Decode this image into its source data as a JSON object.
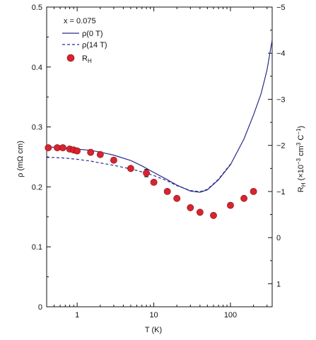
{
  "chart_data": {
    "type": "line",
    "annotation": "x = 0.075",
    "xlabel": "T (K)",
    "ylabel_left": "ρ (mΩ cm)",
    "ylabel_right": "R_H (×10^−3 cm^3 C^−1)",
    "x_scale": "log",
    "xlim": [
      0.4,
      350
    ],
    "ylim_left": [
      0,
      0.5
    ],
    "ylim_right": [
      -5,
      1.5
    ],
    "right_axis_inverted": true,
    "x_ticks_major": [
      1,
      10,
      100
    ],
    "x_tick_labels": [
      "1",
      "10",
      "100"
    ],
    "y_ticks_left": [
      0,
      0.1,
      0.2,
      0.3,
      0.4,
      0.5
    ],
    "y_tick_labels_left": [
      "0",
      "0.1",
      "0.2",
      "0.3",
      "0.4",
      "0.5"
    ],
    "y_ticks_right": [
      -5,
      -4,
      -3,
      -2,
      -1,
      0,
      1
    ],
    "y_tick_labels_right": [
      "−5",
      "−4",
      "−3",
      "−2",
      "−1",
      "0",
      "1"
    ],
    "legend_position": "top-left",
    "legend": [
      {
        "label": "ρ(0 T)",
        "style": "solid"
      },
      {
        "label": "ρ(14 T)",
        "style": "dashed"
      },
      {
        "label": "R_H",
        "style": "marker"
      }
    ],
    "series": [
      {
        "name": "ρ(0 T)",
        "axis": "left",
        "color": "#2a2a8c",
        "style": "solid",
        "x": [
          0.4,
          0.5,
          0.7,
          1,
          1.5,
          2,
          3,
          5,
          7,
          10,
          15,
          20,
          30,
          40,
          50,
          70,
          100,
          150,
          200,
          250,
          300,
          350
        ],
        "y": [
          0.267,
          0.266,
          0.265,
          0.263,
          0.261,
          0.258,
          0.253,
          0.244,
          0.235,
          0.224,
          0.212,
          0.203,
          0.193,
          0.191,
          0.195,
          0.212,
          0.237,
          0.28,
          0.32,
          0.355,
          0.395,
          0.445
        ]
      },
      {
        "name": "ρ(14 T)",
        "axis": "left",
        "color": "#2a2a8c",
        "style": "dashed",
        "x": [
          0.4,
          0.5,
          0.7,
          1,
          1.5,
          2,
          3,
          5,
          7,
          10,
          15,
          20,
          30,
          40,
          50,
          70,
          100
        ],
        "y": [
          0.249,
          0.249,
          0.248,
          0.246,
          0.243,
          0.24,
          0.236,
          0.23,
          0.225,
          0.219,
          0.21,
          0.202,
          0.194,
          0.192,
          0.196,
          0.213,
          0.238
        ]
      },
      {
        "name": "R_H",
        "axis": "right",
        "color": "#d9232e",
        "style": "marker",
        "x": [
          0.42,
          0.55,
          0.65,
          0.8,
          0.9,
          1.0,
          1.5,
          2.0,
          3.0,
          5.0,
          8.0,
          10,
          15,
          20,
          30,
          40,
          60,
          100,
          150,
          200
        ],
        "y": [
          -1.95,
          -1.95,
          -1.95,
          -1.92,
          -1.9,
          -1.88,
          -1.85,
          -1.8,
          -1.68,
          -1.5,
          -1.4,
          -1.2,
          -1.0,
          -0.85,
          -0.65,
          -0.55,
          -0.48,
          -0.7,
          -0.85,
          -1.0
        ],
        "error_bar_x": 8.0,
        "error_bar_half": 0.08
      }
    ]
  }
}
